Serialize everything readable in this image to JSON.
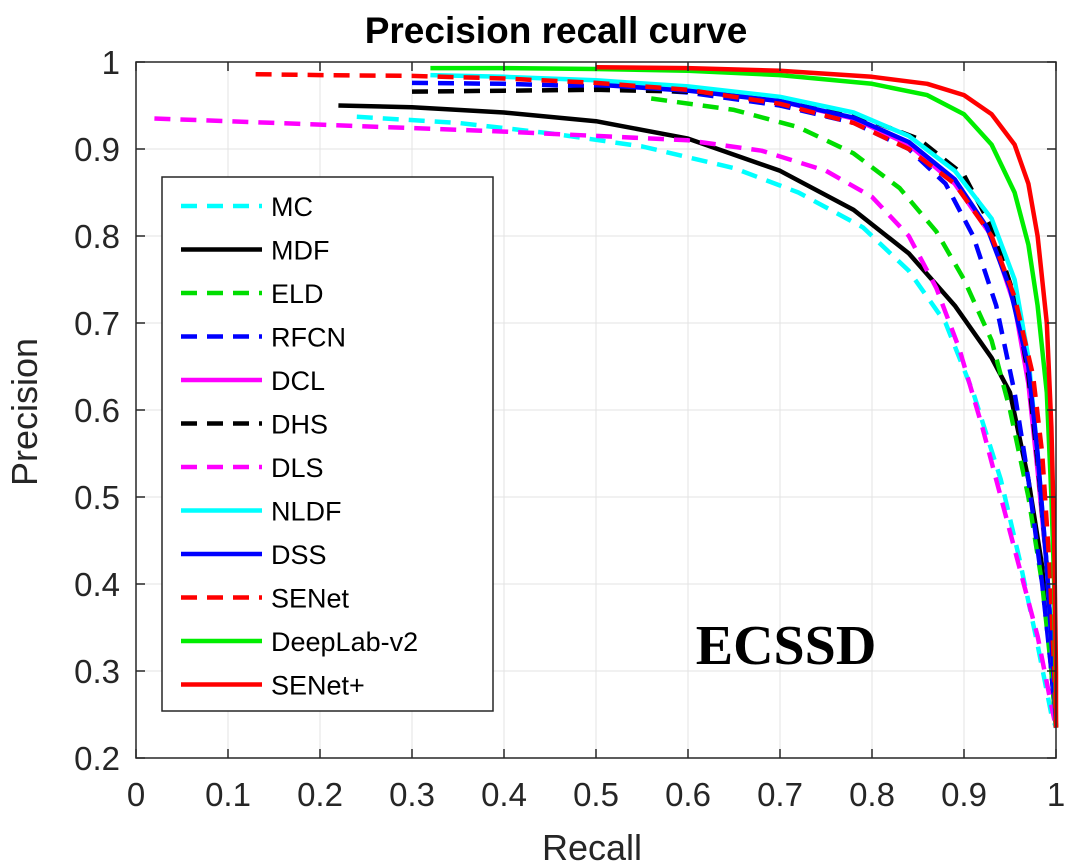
{
  "chart_data": {
    "type": "line",
    "title": "Precision recall curve",
    "xlabel": "Recall",
    "ylabel": "Precision",
    "xlim": [
      0,
      1
    ],
    "ylim": [
      0.2,
      1
    ],
    "grid": true,
    "legend_position": "left",
    "annotation": "ECSSD",
    "x_ticks": [
      "0",
      "0.1",
      "0.2",
      "0.3",
      "0.4",
      "0.5",
      "0.6",
      "0.7",
      "0.8",
      "0.9",
      "1"
    ],
    "y_ticks": [
      "0.2",
      "0.3",
      "0.4",
      "0.5",
      "0.6",
      "0.7",
      "0.8",
      "0.9",
      "1"
    ],
    "series": [
      {
        "name": "MC",
        "color": "#00ffff",
        "dash": true,
        "points": [
          [
            0.24,
            0.937
          ],
          [
            0.35,
            0.93
          ],
          [
            0.45,
            0.918
          ],
          [
            0.55,
            0.903
          ],
          [
            0.65,
            0.878
          ],
          [
            0.72,
            0.85
          ],
          [
            0.79,
            0.81
          ],
          [
            0.84,
            0.76
          ],
          [
            0.88,
            0.7
          ],
          [
            0.91,
            0.62
          ],
          [
            0.94,
            0.52
          ],
          [
            0.96,
            0.43
          ],
          [
            0.98,
            0.33
          ],
          [
            0.995,
            0.25
          ],
          [
            1.0,
            0.235
          ]
        ]
      },
      {
        "name": "MDF",
        "color": "#000000",
        "dash": false,
        "points": [
          [
            0.22,
            0.95
          ],
          [
            0.3,
            0.948
          ],
          [
            0.4,
            0.942
          ],
          [
            0.5,
            0.932
          ],
          [
            0.6,
            0.912
          ],
          [
            0.7,
            0.875
          ],
          [
            0.78,
            0.83
          ],
          [
            0.84,
            0.78
          ],
          [
            0.89,
            0.72
          ],
          [
            0.93,
            0.66
          ],
          [
            0.95,
            0.62
          ],
          [
            0.97,
            0.52
          ],
          [
            0.985,
            0.42
          ],
          [
            0.995,
            0.3
          ],
          [
            1.0,
            0.235
          ]
        ]
      },
      {
        "name": "ELD",
        "color": "#00dd00",
        "dash": true,
        "points": [
          [
            0.56,
            0.958
          ],
          [
            0.65,
            0.945
          ],
          [
            0.72,
            0.925
          ],
          [
            0.78,
            0.895
          ],
          [
            0.83,
            0.855
          ],
          [
            0.87,
            0.805
          ],
          [
            0.9,
            0.75
          ],
          [
            0.93,
            0.68
          ],
          [
            0.95,
            0.6
          ],
          [
            0.97,
            0.5
          ],
          [
            0.985,
            0.4
          ],
          [
            0.995,
            0.3
          ],
          [
            1.0,
            0.235
          ]
        ]
      },
      {
        "name": "RFCN",
        "color": "#0000ff",
        "dash": true,
        "points": [
          [
            0.3,
            0.976
          ],
          [
            0.4,
            0.975
          ],
          [
            0.5,
            0.972
          ],
          [
            0.6,
            0.965
          ],
          [
            0.7,
            0.95
          ],
          [
            0.78,
            0.93
          ],
          [
            0.84,
            0.9
          ],
          [
            0.88,
            0.86
          ],
          [
            0.91,
            0.8
          ],
          [
            0.935,
            0.72
          ],
          [
            0.955,
            0.62
          ],
          [
            0.97,
            0.52
          ],
          [
            0.985,
            0.4
          ],
          [
            0.995,
            0.3
          ],
          [
            1.0,
            0.235
          ]
        ]
      },
      {
        "name": "DCL",
        "color": "#ff00ff",
        "dash": false,
        "points": [
          [
            0.5,
            0.975
          ],
          [
            0.6,
            0.968
          ],
          [
            0.7,
            0.955
          ],
          [
            0.78,
            0.935
          ],
          [
            0.84,
            0.905
          ],
          [
            0.89,
            0.86
          ],
          [
            0.93,
            0.8
          ],
          [
            0.955,
            0.72
          ],
          [
            0.97,
            0.63
          ],
          [
            0.98,
            0.53
          ],
          [
            0.99,
            0.42
          ],
          [
            0.997,
            0.3
          ],
          [
            1.0,
            0.235
          ]
        ]
      },
      {
        "name": "DHS",
        "color": "#000000",
        "dash": true,
        "points": [
          [
            0.3,
            0.966
          ],
          [
            0.4,
            0.967
          ],
          [
            0.5,
            0.968
          ],
          [
            0.6,
            0.966
          ],
          [
            0.7,
            0.958
          ],
          [
            0.78,
            0.94
          ],
          [
            0.85,
            0.912
          ],
          [
            0.9,
            0.87
          ],
          [
            0.93,
            0.81
          ],
          [
            0.955,
            0.73
          ],
          [
            0.97,
            0.64
          ],
          [
            0.98,
            0.54
          ],
          [
            0.99,
            0.42
          ],
          [
            0.997,
            0.3
          ],
          [
            1.0,
            0.235
          ]
        ]
      },
      {
        "name": "DLS",
        "color": "#ff00ff",
        "dash": true,
        "points": [
          [
            0.02,
            0.935
          ],
          [
            0.1,
            0.932
          ],
          [
            0.2,
            0.928
          ],
          [
            0.3,
            0.924
          ],
          [
            0.4,
            0.92
          ],
          [
            0.5,
            0.915
          ],
          [
            0.6,
            0.91
          ],
          [
            0.68,
            0.898
          ],
          [
            0.75,
            0.875
          ],
          [
            0.8,
            0.845
          ],
          [
            0.84,
            0.8
          ],
          [
            0.87,
            0.74
          ],
          [
            0.895,
            0.67
          ],
          [
            0.92,
            0.58
          ],
          [
            0.94,
            0.5
          ],
          [
            0.96,
            0.42
          ],
          [
            0.98,
            0.34
          ],
          [
            0.995,
            0.26
          ],
          [
            1.0,
            0.235
          ]
        ]
      },
      {
        "name": "NLDF",
        "color": "#00ffff",
        "dash": false,
        "points": [
          [
            0.32,
            0.985
          ],
          [
            0.4,
            0.983
          ],
          [
            0.5,
            0.979
          ],
          [
            0.6,
            0.972
          ],
          [
            0.7,
            0.96
          ],
          [
            0.78,
            0.942
          ],
          [
            0.84,
            0.915
          ],
          [
            0.89,
            0.875
          ],
          [
            0.93,
            0.82
          ],
          [
            0.955,
            0.75
          ],
          [
            0.97,
            0.66
          ],
          [
            0.98,
            0.55
          ],
          [
            0.99,
            0.42
          ],
          [
            0.997,
            0.3
          ],
          [
            1.0,
            0.235
          ]
        ]
      },
      {
        "name": "DSS",
        "color": "#0000ff",
        "dash": false,
        "points": [
          [
            0.5,
            0.974
          ],
          [
            0.6,
            0.967
          ],
          [
            0.7,
            0.955
          ],
          [
            0.78,
            0.936
          ],
          [
            0.84,
            0.908
          ],
          [
            0.89,
            0.865
          ],
          [
            0.925,
            0.81
          ],
          [
            0.95,
            0.74
          ],
          [
            0.97,
            0.65
          ],
          [
            0.98,
            0.55
          ],
          [
            0.99,
            0.42
          ],
          [
            0.997,
            0.3
          ],
          [
            1.0,
            0.235
          ]
        ]
      },
      {
        "name": "SENet",
        "color": "#ff0000",
        "dash": true,
        "points": [
          [
            0.13,
            0.986
          ],
          [
            0.2,
            0.985
          ],
          [
            0.3,
            0.984
          ],
          [
            0.4,
            0.981
          ],
          [
            0.5,
            0.976
          ],
          [
            0.6,
            0.968
          ],
          [
            0.7,
            0.952
          ],
          [
            0.78,
            0.93
          ],
          [
            0.84,
            0.9
          ],
          [
            0.89,
            0.86
          ],
          [
            0.93,
            0.8
          ],
          [
            0.955,
            0.73
          ],
          [
            0.975,
            0.64
          ],
          [
            0.985,
            0.55
          ],
          [
            0.993,
            0.42
          ],
          [
            0.998,
            0.3
          ],
          [
            1.0,
            0.235
          ]
        ]
      },
      {
        "name": "DeepLab-v2",
        "color": "#00ee00",
        "dash": false,
        "points": [
          [
            0.32,
            0.993
          ],
          [
            0.4,
            0.993
          ],
          [
            0.5,
            0.992
          ],
          [
            0.6,
            0.99
          ],
          [
            0.7,
            0.985
          ],
          [
            0.8,
            0.975
          ],
          [
            0.86,
            0.962
          ],
          [
            0.9,
            0.94
          ],
          [
            0.93,
            0.905
          ],
          [
            0.955,
            0.85
          ],
          [
            0.97,
            0.79
          ],
          [
            0.98,
            0.72
          ],
          [
            0.99,
            0.62
          ],
          [
            0.995,
            0.5
          ],
          [
            0.998,
            0.4
          ],
          [
            1.0,
            0.235
          ]
        ]
      },
      {
        "name": "SENet+",
        "color": "#ff0000",
        "dash": false,
        "points": [
          [
            0.5,
            0.994
          ],
          [
            0.6,
            0.993
          ],
          [
            0.7,
            0.99
          ],
          [
            0.8,
            0.983
          ],
          [
            0.86,
            0.975
          ],
          [
            0.9,
            0.962
          ],
          [
            0.93,
            0.94
          ],
          [
            0.955,
            0.905
          ],
          [
            0.97,
            0.86
          ],
          [
            0.98,
            0.8
          ],
          [
            0.99,
            0.7
          ],
          [
            0.995,
            0.58
          ],
          [
            0.998,
            0.45
          ],
          [
            1.0,
            0.3
          ],
          [
            1.0,
            0.235
          ]
        ]
      }
    ]
  }
}
